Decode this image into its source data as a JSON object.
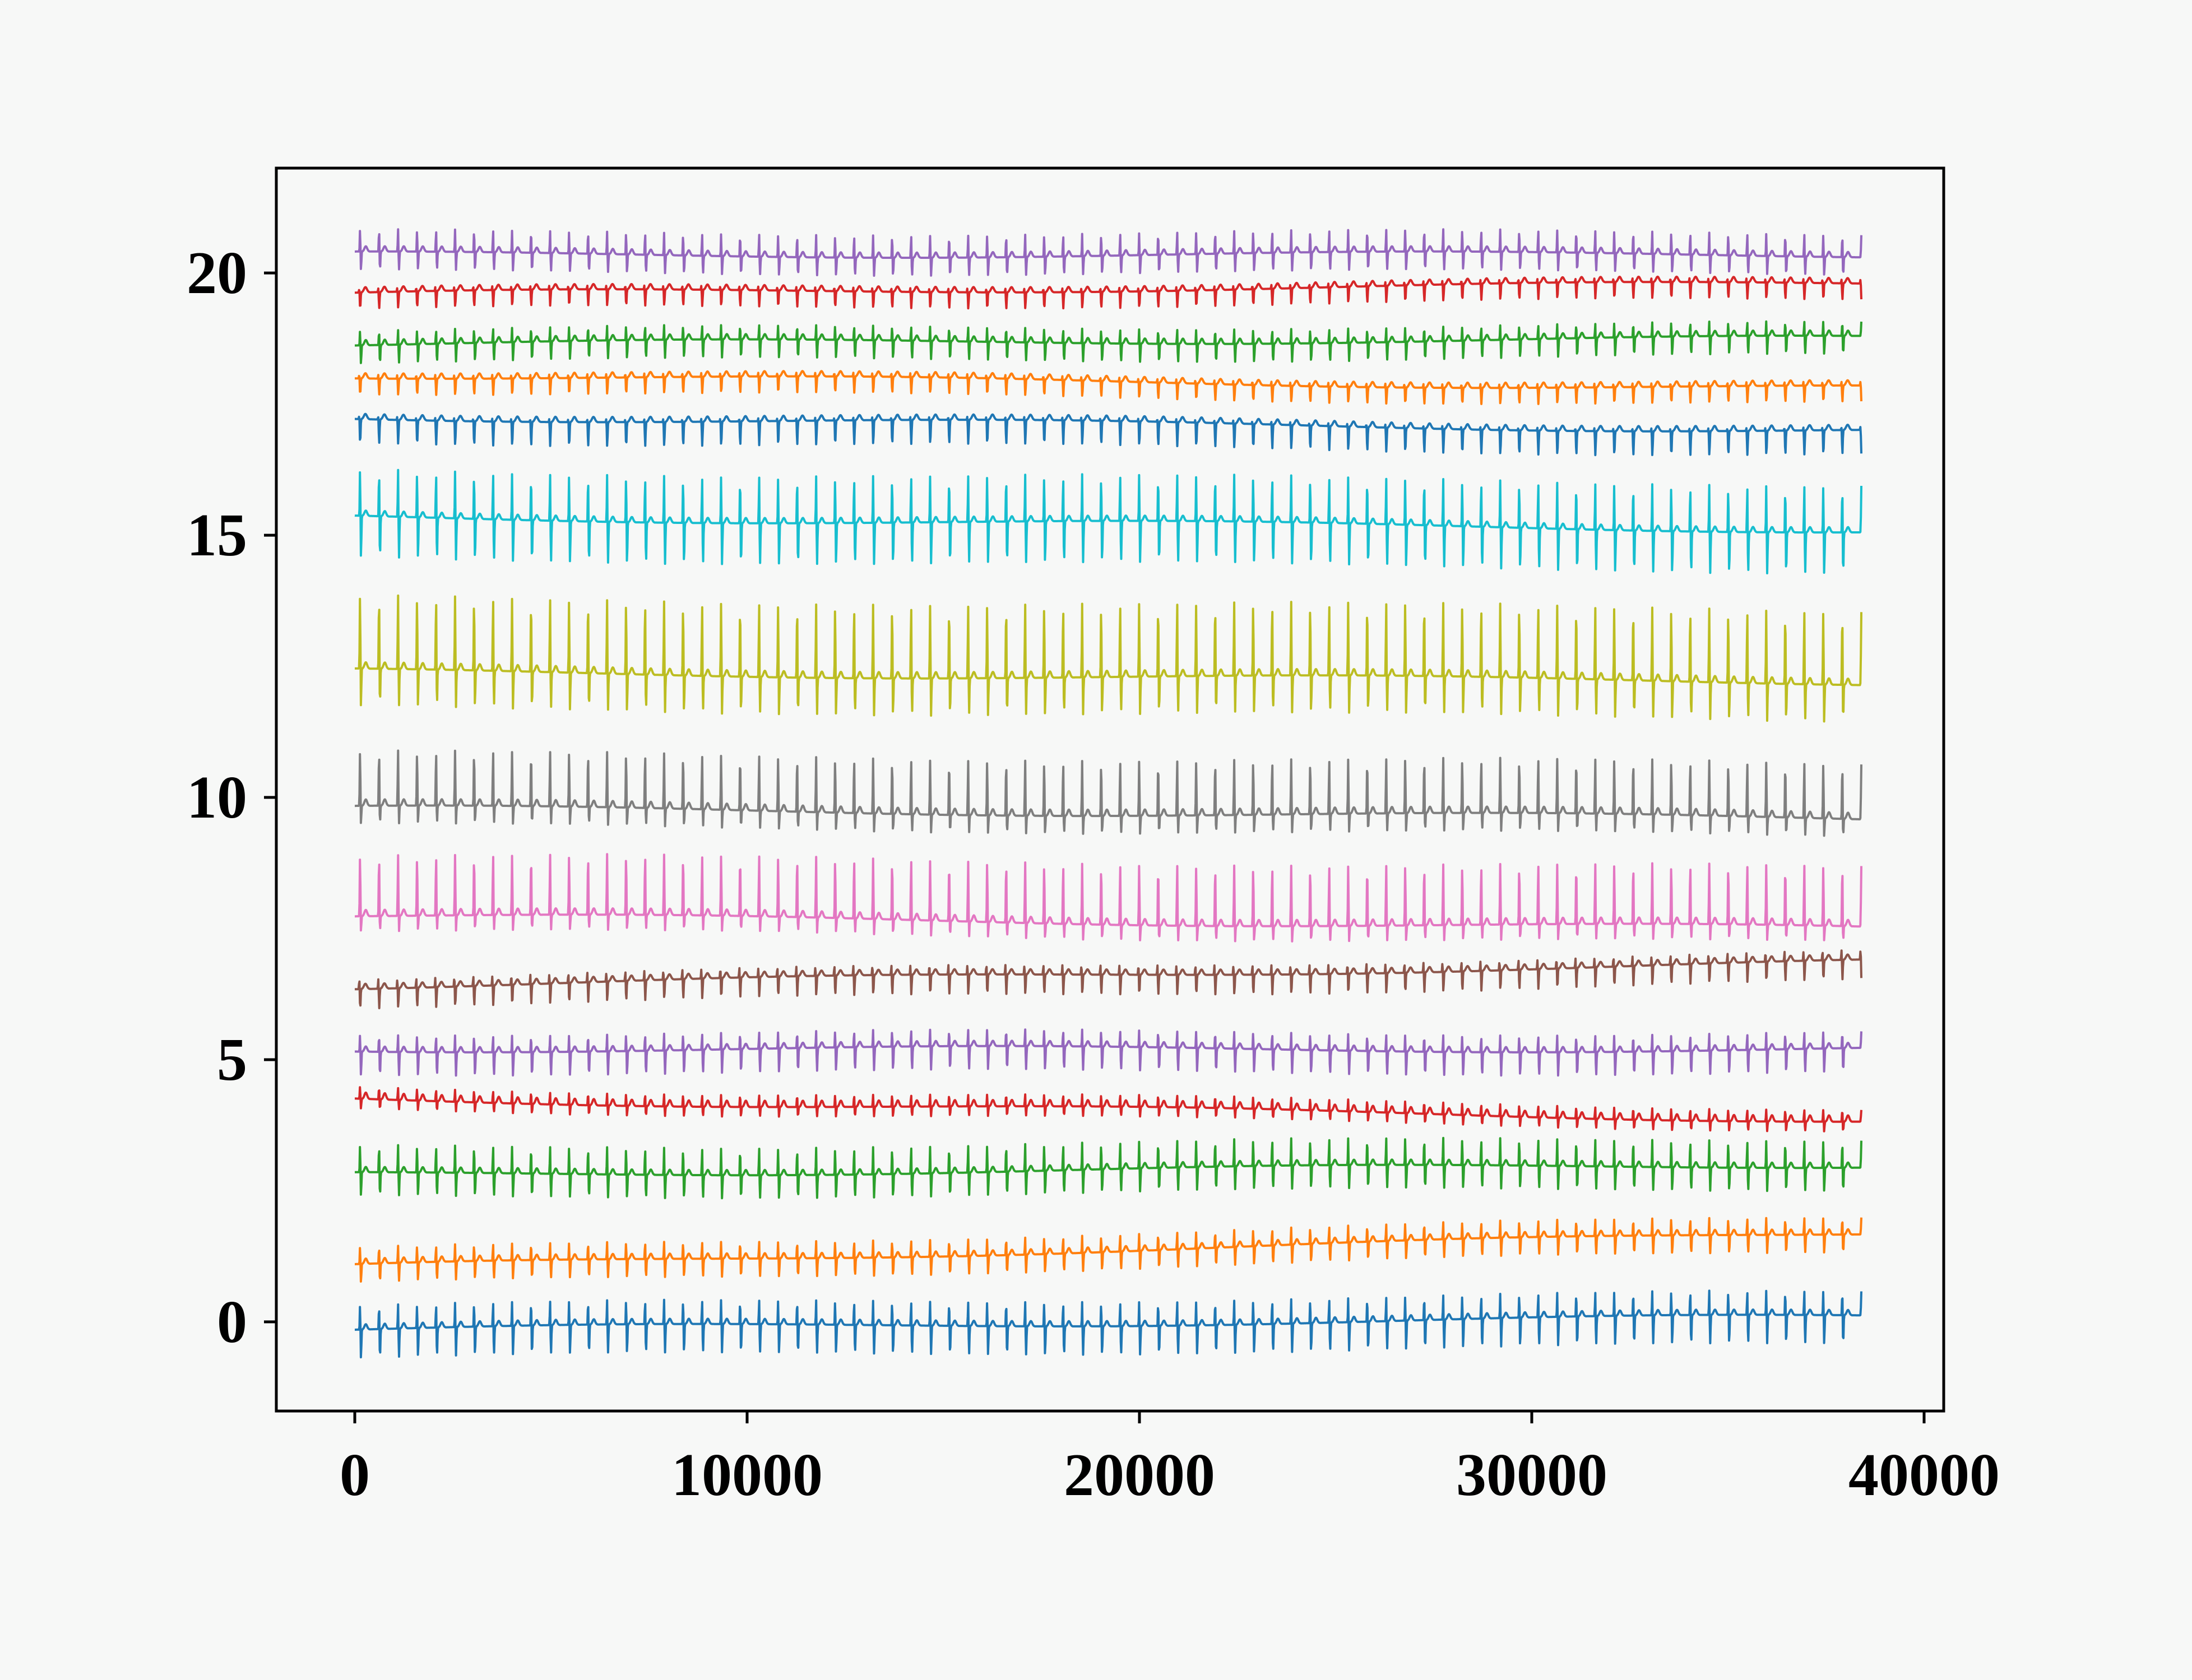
{
  "chart_data": {
    "type": "line",
    "title": "",
    "xlabel": "",
    "ylabel": "",
    "xlim": [
      -2000,
      40500
    ],
    "ylim": [
      -1.7,
      22.0
    ],
    "xticks": [
      0,
      10000,
      20000,
      30000,
      40000
    ],
    "xtick_labels": [
      "0",
      "10000",
      "20000",
      "30000",
      "40000"
    ],
    "yticks": [
      0,
      5,
      10,
      15,
      20
    ],
    "ytick_labels": [
      "0",
      "5",
      "10",
      "15",
      "20"
    ],
    "grid": false,
    "legend": "none",
    "x_range": [
      0,
      38400
    ],
    "beats": 78,
    "first_beat_x": 620,
    "series": [
      {
        "color": "#1f77b4",
        "start": -0.15,
        "end": 0.1,
        "up": 0.5,
        "down": 0.55,
        "wave": "rs"
      },
      {
        "color": "#ff7f0e",
        "start": 1.05,
        "end": 1.7,
        "up": 0.35,
        "down": 0.35,
        "wave": "rs"
      },
      {
        "color": "#2ca02c",
        "start": 2.8,
        "end": 3.0,
        "up": 0.55,
        "down": 0.45,
        "wave": "rs"
      },
      {
        "color": "#d62728",
        "start": 4.25,
        "end": 3.85,
        "up": 0.25,
        "down": 0.2,
        "wave": "r"
      },
      {
        "color": "#9467bd",
        "start": 5.2,
        "end": 5.2,
        "up": 0.35,
        "down": 0.45,
        "wave": "rs"
      },
      {
        "color": "#8c564b",
        "start": 6.4,
        "end": 6.85,
        "up": 0.3,
        "down": 0.45,
        "wave": "s"
      },
      {
        "color": "#e377c2",
        "start": 7.75,
        "end": 7.5,
        "up": 1.2,
        "down": 0.35,
        "wave": "r"
      },
      {
        "color": "#7f7f7f",
        "start": 9.8,
        "end": 9.6,
        "up": 1.1,
        "down": 0.4,
        "wave": "r"
      },
      {
        "color": "#bcbd22",
        "start": 12.4,
        "end": 12.2,
        "up": 1.5,
        "down": 0.8,
        "wave": "r"
      },
      {
        "color": "#17becf",
        "start": 15.35,
        "end": 15.1,
        "up": 0.95,
        "down": 0.8,
        "wave": "rs"
      },
      {
        "color": "#1f77b4",
        "start": 17.25,
        "end": 17.0,
        "up": 0.15,
        "down": 0.5,
        "wave": "s"
      },
      {
        "color": "#ff7f0e",
        "start": 18.05,
        "end": 17.8,
        "up": 0.15,
        "down": 0.35,
        "wave": "s"
      },
      {
        "color": "#2ca02c",
        "start": 18.65,
        "end": 18.75,
        "up": 0.3,
        "down": 0.35,
        "wave": "rs"
      },
      {
        "color": "#d62728",
        "start": 19.6,
        "end": 19.8,
        "up": 0.15,
        "down": 0.35,
        "wave": "s"
      },
      {
        "color": "#9467bd",
        "start": 20.35,
        "end": 20.35,
        "up": 0.45,
        "down": 0.35,
        "wave": "rs"
      }
    ]
  }
}
